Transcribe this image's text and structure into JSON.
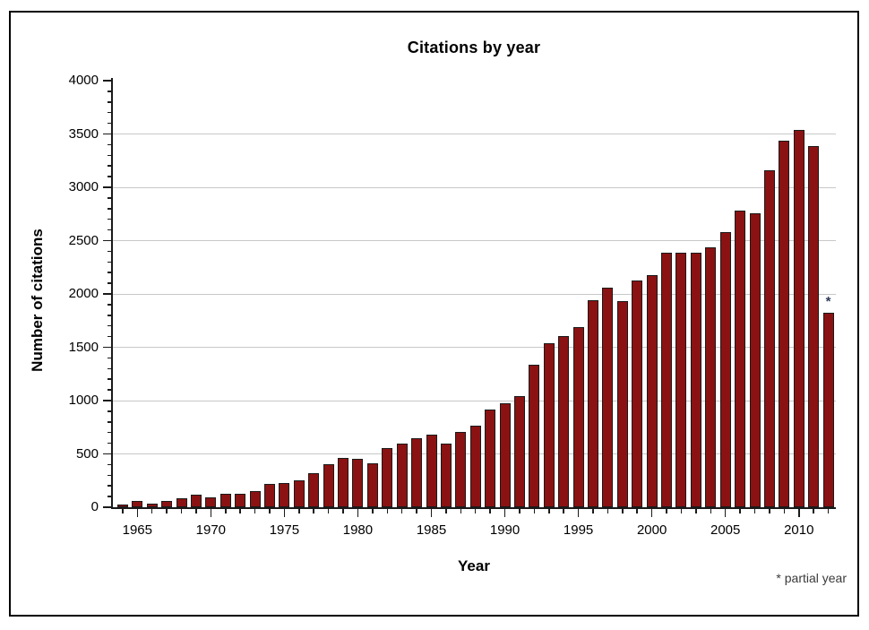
{
  "chart_data": {
    "type": "bar",
    "title": "Citations by year",
    "xlabel": "Year",
    "ylabel": "Number of citations",
    "footnote": "* partial year",
    "partial_year_marker": "*",
    "partial_year": 2012,
    "years": [
      1964,
      1965,
      1966,
      1967,
      1968,
      1969,
      1970,
      1971,
      1972,
      1973,
      1974,
      1975,
      1976,
      1977,
      1978,
      1979,
      1980,
      1981,
      1982,
      1983,
      1984,
      1985,
      1986,
      1987,
      1988,
      1989,
      1990,
      1991,
      1992,
      1993,
      1994,
      1995,
      1996,
      1997,
      1998,
      1999,
      2000,
      2001,
      2002,
      2003,
      2004,
      2005,
      2006,
      2007,
      2008,
      2009,
      2010,
      2011,
      2012
    ],
    "values": [
      25,
      60,
      35,
      60,
      85,
      120,
      95,
      130,
      130,
      150,
      220,
      230,
      250,
      320,
      405,
      465,
      455,
      415,
      555,
      600,
      645,
      680,
      595,
      710,
      765,
      920,
      975,
      1040,
      1340,
      1535,
      1605,
      1690,
      1945,
      2060,
      1935,
      2125,
      2175,
      2390,
      2390,
      2390,
      2440,
      2580,
      2780,
      2760,
      3160,
      3440,
      3540,
      3390,
      1820
    ],
    "x_tick_labels": [
      "1965",
      "1970",
      "1975",
      "1980",
      "1985",
      "1990",
      "1995",
      "2000",
      "2005",
      "2010"
    ],
    "y_ticks": [
      0,
      500,
      1000,
      1500,
      2000,
      2500,
      3000,
      3500,
      4000
    ],
    "y_minor_tick_step": 100,
    "x_minor_tick_step_years": 1,
    "ylim": [
      0,
      4000
    ],
    "grid": "horizontal gridlines at major y ticks (500-3500)",
    "legend": "none",
    "bar_color": "#8B1212",
    "bar_border_color": "#1a1a1a",
    "gridline_color": "#c8c8c8",
    "axis_color": "#1a1a1a",
    "footnote_color": "#3a3a3a",
    "partial_marker_color": "#2d3a56"
  }
}
